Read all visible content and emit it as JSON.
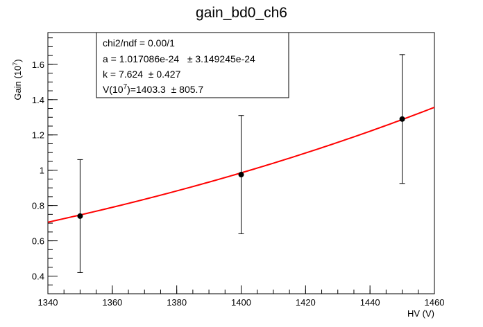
{
  "chart_data": {
    "type": "scatter",
    "title": "gain_bd0_ch6",
    "xlabel": "HV (V)",
    "ylabel": {
      "base": "Gain (10",
      "exp": "7",
      "tail": ")"
    },
    "xlim": [
      1340,
      1460
    ],
    "ylim": [
      0.3,
      1.78
    ],
    "xticks": [
      1340,
      1360,
      1380,
      1400,
      1420,
      1440,
      1460
    ],
    "yticks": [
      0.4,
      0.6,
      0.8,
      1,
      1.2,
      1.4,
      1.6
    ],
    "x_minor_step": 5,
    "y_minor_step": 0.05,
    "grid": false,
    "series": [
      {
        "points": [
          {
            "x": 1350,
            "y": 0.74,
            "err": 0.32
          },
          {
            "x": 1400,
            "y": 0.975,
            "err": 0.335
          },
          {
            "x": 1450,
            "y": 1.29,
            "err": 0.365
          }
        ],
        "marker_color": "#000000"
      }
    ],
    "fit": {
      "color": "#ff0000",
      "a": 1.017086e-24,
      "k": 7.624,
      "x_range": [
        1340,
        1460
      ]
    },
    "stats": {
      "line1": "chi2/ndf = 0.00/1",
      "line2": "a = 1.017086e-24   ± 3.149245e-24",
      "line3": "k = 7.624  ± 0.427",
      "line4_pre": "V(10",
      "line4_exp": "7",
      "line4_post": ")=1403.3  ± 805.7"
    }
  }
}
